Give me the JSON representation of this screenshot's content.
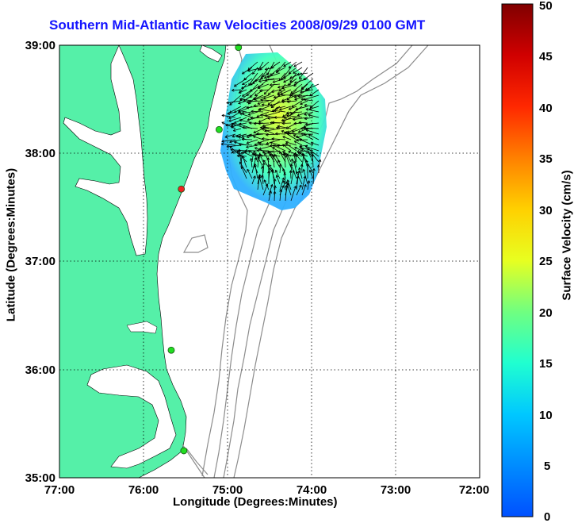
{
  "title": "Southern Mid-Atlantic Raw Velocities 2008/09/29 0100 GMT",
  "xlabel": "Longitude (Degrees:Minutes)",
  "ylabel": "Latitude (Degrees:Minutes)",
  "colorbar_label": "Surface Velocity (cm/s)",
  "x_ticks": [
    "77:00",
    "76:00",
    "75:00",
    "74:00",
    "73:00",
    "72:00"
  ],
  "y_ticks": [
    "39:00",
    "38:00",
    "37:00",
    "36:00",
    "35:00"
  ],
  "colorbar_ticks": [
    "50",
    "45",
    "40",
    "35",
    "30",
    "25",
    "20",
    "15",
    "10",
    "5",
    "0"
  ],
  "colors": {
    "land": "#55f0a8",
    "title": "#1414ff",
    "bathymetry": "#8c8c8c",
    "station_green": "#22dd22",
    "station_red": "#ee2222"
  },
  "map": {
    "lon_range": [
      -77,
      -72
    ],
    "lat_range": [
      35,
      39
    ],
    "colorbar_range": [
      0,
      50
    ],
    "grid": "dotted",
    "stations": [
      {
        "lon": -74.87,
        "lat": 38.98,
        "status": "active"
      },
      {
        "lon": -75.1,
        "lat": 38.22,
        "status": "active"
      },
      {
        "lon": -75.55,
        "lat": 37.67,
        "status": "inactive"
      },
      {
        "lon": -75.67,
        "lat": 36.18,
        "status": "active"
      },
      {
        "lon": -75.52,
        "lat": 35.25,
        "status": "active"
      }
    ]
  }
}
